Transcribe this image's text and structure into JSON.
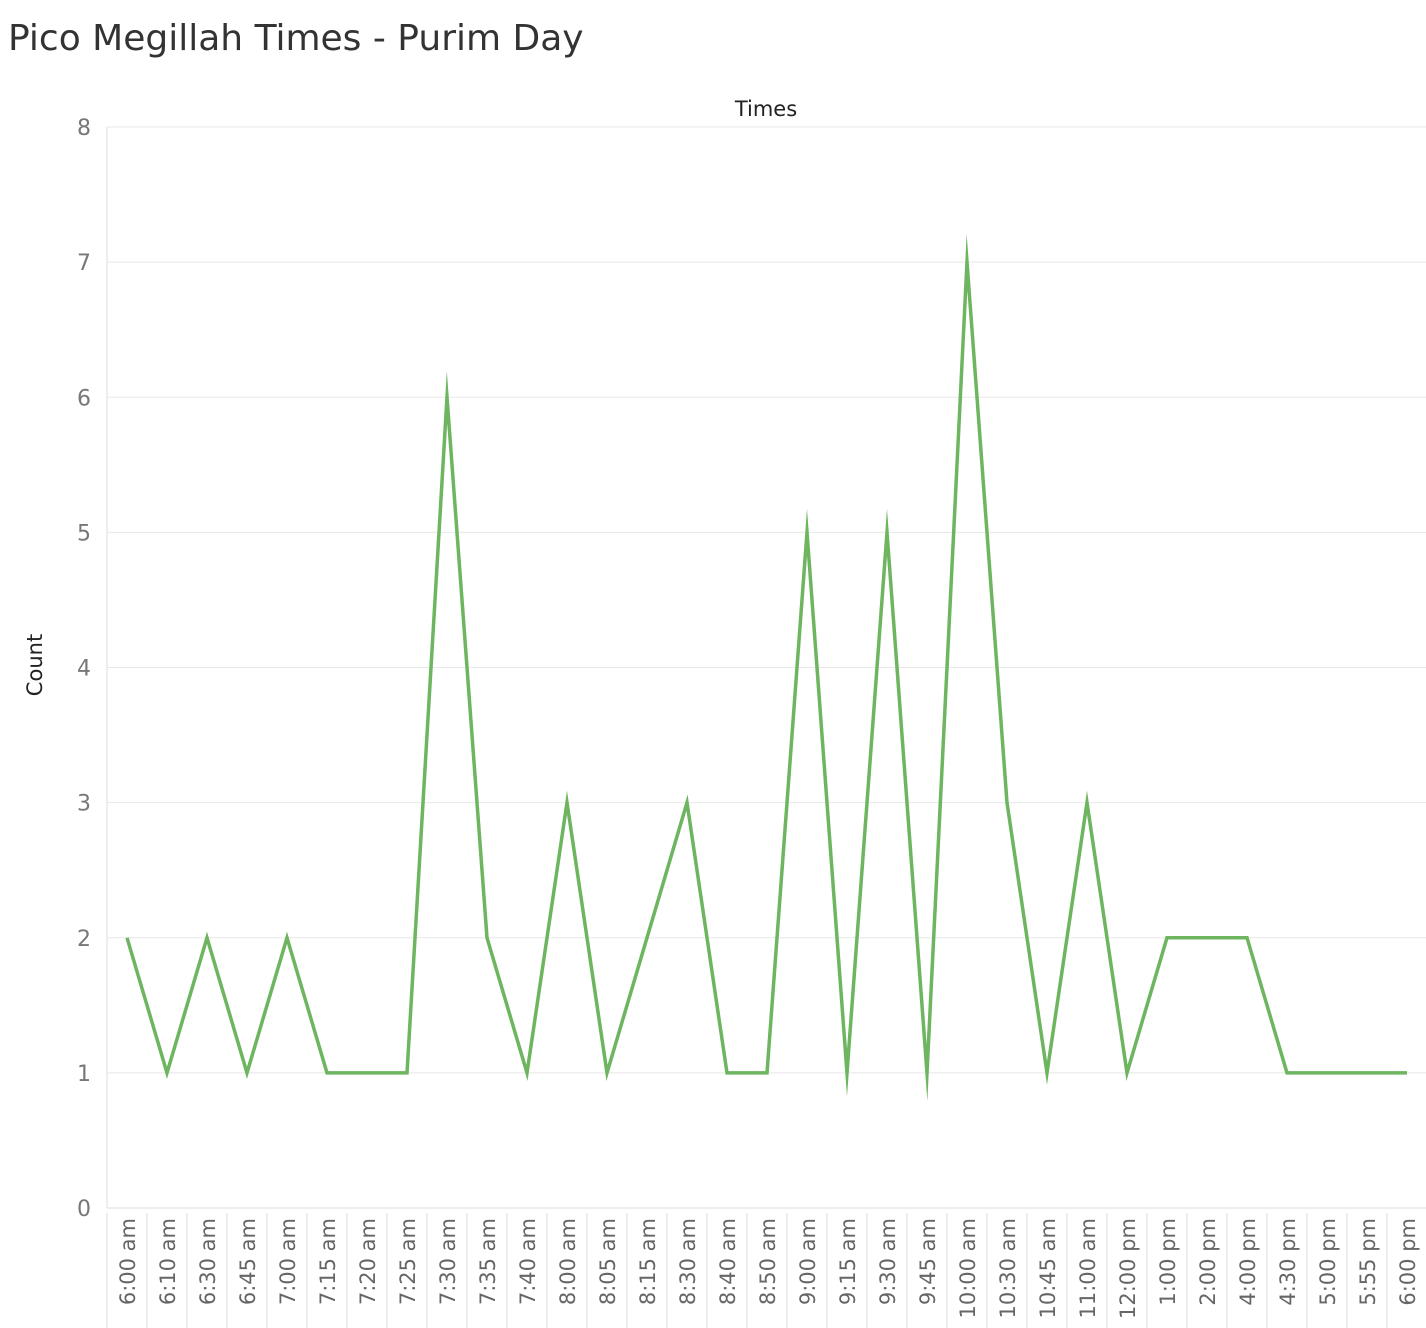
{
  "title": "Pico Megillah Times - Purim Day",
  "chart_data": {
    "type": "line",
    "title": "Pico Megillah Times - Purim Day",
    "xlabel": "Times",
    "ylabel": "Count",
    "ylim": [
      0,
      8
    ],
    "yticks": [
      "0",
      "1",
      "2",
      "3",
      "4",
      "5",
      "6",
      "7",
      "8"
    ],
    "grid": true,
    "color": "#6db55f",
    "categories": [
      "6:00 am",
      "6:10 am",
      "6:30 am",
      "6:45 am",
      "7:00 am",
      "7:15 am",
      "7:20 am",
      "7:25 am",
      "7:30 am",
      "7:35 am",
      "7:40 am",
      "8:00 am",
      "8:05 am",
      "8:15 am",
      "8:30 am",
      "8:40 am",
      "8:50 am",
      "9:00 am",
      "9:15 am",
      "9:30 am",
      "9:45 am",
      "10:00 am",
      "10:30 am",
      "10:45 am",
      "11:00 am",
      "12:00 pm",
      "1:00 pm",
      "2:00 pm",
      "4:00 pm",
      "4:30 pm",
      "5:00 pm",
      "5:55 pm",
      "6:00 pm"
    ],
    "values": [
      2,
      1,
      2,
      1,
      2,
      1,
      1,
      1,
      6,
      2,
      1,
      3,
      1,
      2,
      3,
      1,
      1,
      5,
      1,
      5,
      1,
      7,
      3,
      1,
      3,
      1,
      2,
      2,
      2,
      1,
      1,
      1,
      1
    ]
  }
}
